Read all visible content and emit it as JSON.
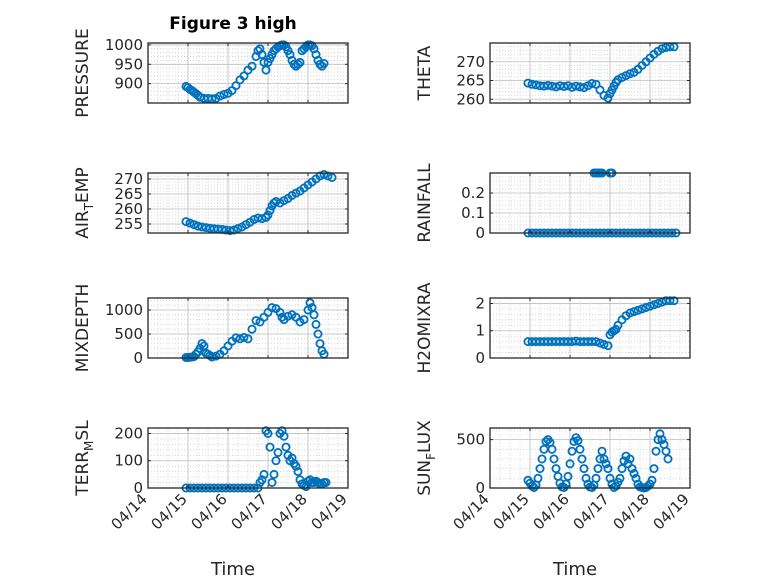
{
  "chart_data": [
    {
      "type": "scatter",
      "title": "Figure 3 high",
      "ylabel": "PRESSURE",
      "ylim": [
        850,
        1005
      ],
      "yticks": [
        900,
        950,
        1000
      ],
      "xlim": [
        0,
        5
      ],
      "xtick_labels": [],
      "grid": true,
      "marker": "circle",
      "color": "#0072BD",
      "x": [
        0.95,
        1.0,
        1.05,
        1.1,
        1.15,
        1.2,
        1.25,
        1.3,
        1.4,
        1.5,
        1.6,
        1.7,
        1.8,
        1.9,
        2.0,
        2.1,
        2.2,
        2.3,
        2.4,
        2.5,
        2.6,
        2.7,
        2.75,
        2.8,
        2.85,
        2.9,
        2.95,
        3.0,
        3.05,
        3.1,
        3.15,
        3.2,
        3.25,
        3.3,
        3.35,
        3.4,
        3.45,
        3.5,
        3.55,
        3.6,
        3.65,
        3.7,
        3.75,
        3.8,
        3.85,
        3.9,
        3.95,
        4.0,
        4.05,
        4.1,
        4.15,
        4.2,
        4.25,
        4.3,
        4.35,
        4.4
      ],
      "y": [
        893,
        890,
        885,
        882,
        878,
        874,
        870,
        865,
        862,
        862,
        861,
        862,
        868,
        872,
        875,
        882,
        895,
        910,
        920,
        935,
        945,
        970,
        985,
        990,
        975,
        955,
        935,
        955,
        965,
        975,
        985,
        990,
        995,
        998,
        1000,
        1000,
        995,
        985,
        975,
        960,
        950,
        945,
        950,
        955,
        985,
        990,
        995,
        1000,
        1000,
        998,
        990,
        975,
        960,
        950,
        945,
        952
      ],
      "series_name": ""
    },
    {
      "type": "scatter",
      "title": "",
      "ylabel": "THETA",
      "ylim": [
        259,
        275
      ],
      "yticks": [
        260,
        265,
        270
      ],
      "xlim": [
        0,
        5
      ],
      "xtick_labels": [],
      "grid": true,
      "x": [
        0.95,
        1.05,
        1.15,
        1.25,
        1.35,
        1.45,
        1.55,
        1.65,
        1.75,
        1.85,
        1.95,
        2.05,
        2.15,
        2.25,
        2.35,
        2.45,
        2.55,
        2.65,
        2.75,
        2.85,
        2.95,
        3.0,
        3.05,
        3.1,
        3.15,
        3.2,
        3.3,
        3.4,
        3.5,
        3.6,
        3.7,
        3.8,
        3.9,
        4.0,
        4.1,
        4.2,
        4.3,
        4.4,
        4.5,
        4.6
      ],
      "y": [
        264.3,
        264,
        263.8,
        263.6,
        263.5,
        263.7,
        263.5,
        263.3,
        263.6,
        263.4,
        263.6,
        263.2,
        263.5,
        263.3,
        263.1,
        263.6,
        264.2,
        264,
        262.5,
        261,
        260.3,
        261.5,
        262.5,
        263.5,
        264.5,
        265.2,
        265.8,
        266.3,
        266.8,
        267.2,
        268,
        269,
        270,
        271,
        272,
        272.8,
        273.5,
        273.8,
        274,
        274
      ]
    },
    {
      "type": "scatter",
      "title": "",
      "ylabel": "AIR_TEMP",
      "ylim": [
        252,
        272
      ],
      "yticks": [
        255,
        260,
        265,
        270
      ],
      "xlim": [
        0,
        5
      ],
      "xtick_labels": [],
      "grid": true,
      "x": [
        0.95,
        1.05,
        1.15,
        1.25,
        1.35,
        1.45,
        1.55,
        1.65,
        1.75,
        1.85,
        1.95,
        2.05,
        2.15,
        2.25,
        2.35,
        2.45,
        2.55,
        2.65,
        2.75,
        2.85,
        2.95,
        3.0,
        3.05,
        3.1,
        3.15,
        3.2,
        3.3,
        3.4,
        3.5,
        3.6,
        3.7,
        3.8,
        3.9,
        4.0,
        4.1,
        4.2,
        4.3,
        4.4,
        4.5,
        4.6
      ],
      "y": [
        255.8,
        255.3,
        254.8,
        254.3,
        254.0,
        253.8,
        253.6,
        253.4,
        253.3,
        253.2,
        253.0,
        252.8,
        253.0,
        253.5,
        254.0,
        254.8,
        255.6,
        256.5,
        257.0,
        256.8,
        257.2,
        258,
        259.5,
        261,
        262,
        262.5,
        262,
        262.8,
        263.5,
        264.5,
        265.3,
        266,
        267,
        268,
        269,
        270,
        271,
        271.5,
        271,
        270.5
      ]
    },
    {
      "type": "scatter",
      "title": "",
      "ylabel": "RAINFALL",
      "ylim": [
        0,
        0.3
      ],
      "yticks": [
        0,
        0.1,
        0.2
      ],
      "xlim": [
        0,
        5
      ],
      "xtick_labels": [],
      "grid": true,
      "x": [
        0.95,
        1.05,
        1.15,
        1.25,
        1.35,
        1.45,
        1.55,
        1.65,
        1.75,
        1.85,
        1.95,
        2.05,
        2.15,
        2.25,
        2.35,
        2.45,
        2.55,
        2.65,
        2.75,
        2.85,
        2.95,
        3.05,
        3.15,
        3.25,
        3.35,
        3.45,
        3.55,
        3.65,
        3.75,
        3.85,
        3.95,
        4.05,
        4.15,
        4.25,
        4.35,
        4.45,
        4.55,
        4.65,
        2.6,
        2.65,
        2.7,
        2.75,
        2.8,
        3.0,
        3.05
      ],
      "y": [
        0,
        0,
        0,
        0,
        0,
        0,
        0,
        0,
        0,
        0,
        0,
        0,
        0,
        0,
        0,
        0,
        0,
        0,
        0,
        0,
        0,
        0,
        0,
        0,
        0,
        0,
        0,
        0,
        0,
        0,
        0,
        0,
        0,
        0,
        0,
        0,
        0,
        0,
        0.3,
        0.3,
        0.3,
        0.3,
        0.3,
        0.3,
        0.3
      ]
    },
    {
      "type": "scatter",
      "title": "",
      "ylabel": "MIXDEPTH",
      "ylim": [
        0,
        1250
      ],
      "yticks": [
        0,
        500,
        1000
      ],
      "xlim": [
        0,
        5
      ],
      "xtick_labels": [],
      "grid": true,
      "x": [
        0.95,
        1.0,
        1.05,
        1.1,
        1.15,
        1.2,
        1.25,
        1.3,
        1.35,
        1.4,
        1.45,
        1.5,
        1.55,
        1.6,
        1.7,
        1.8,
        1.9,
        2.0,
        2.1,
        2.2,
        2.3,
        2.4,
        2.5,
        2.6,
        2.7,
        2.8,
        2.9,
        3.0,
        3.1,
        3.2,
        3.3,
        3.35,
        3.4,
        3.5,
        3.6,
        3.7,
        3.8,
        3.9,
        4.0,
        4.05,
        4.1,
        4.15,
        4.2,
        4.25,
        4.3,
        4.35,
        4.4
      ],
      "y": [
        10,
        10,
        15,
        20,
        30,
        80,
        130,
        200,
        300,
        250,
        100,
        80,
        50,
        20,
        40,
        80,
        150,
        250,
        350,
        420,
        400,
        430,
        400,
        600,
        780,
        750,
        850,
        950,
        1050,
        1030,
        950,
        850,
        800,
        870,
        900,
        850,
        750,
        800,
        1000,
        1150,
        1050,
        900,
        700,
        500,
        300,
        150,
        80
      ]
    },
    {
      "type": "scatter",
      "title": "",
      "ylabel": "H2OMIXRA",
      "ylim": [
        0,
        2.2
      ],
      "yticks": [
        0,
        1,
        2
      ],
      "xlim": [
        0,
        5
      ],
      "xtick_labels": [],
      "grid": true,
      "x": [
        0.95,
        1.05,
        1.15,
        1.25,
        1.35,
        1.45,
        1.55,
        1.65,
        1.75,
        1.85,
        1.95,
        2.05,
        2.15,
        2.25,
        2.35,
        2.45,
        2.55,
        2.65,
        2.75,
        2.85,
        2.95,
        3.0,
        3.05,
        3.1,
        3.15,
        3.2,
        3.3,
        3.4,
        3.5,
        3.6,
        3.7,
        3.8,
        3.9,
        4.0,
        4.1,
        4.2,
        4.3,
        4.4,
        4.5,
        4.6
      ],
      "y": [
        0.6,
        0.6,
        0.6,
        0.6,
        0.6,
        0.6,
        0.6,
        0.6,
        0.6,
        0.6,
        0.6,
        0.6,
        0.62,
        0.6,
        0.6,
        0.6,
        0.6,
        0.6,
        0.55,
        0.5,
        0.45,
        0.85,
        0.95,
        1.0,
        1.05,
        1.2,
        1.4,
        1.55,
        1.65,
        1.7,
        1.75,
        1.8,
        1.85,
        1.9,
        1.95,
        2.0,
        2.05,
        2.1,
        2.1,
        2.1
      ]
    },
    {
      "type": "scatter",
      "title": "",
      "ylabel": "TERR_MSL",
      "xlabel": "Time",
      "ylim": [
        0,
        220
      ],
      "yticks": [
        0,
        100,
        200
      ],
      "xlim": [
        0,
        5
      ],
      "xtick_labels": [
        "04/14",
        "04/15",
        "04/16",
        "04/17",
        "04/18",
        "04/19"
      ],
      "grid": true,
      "x": [
        0.95,
        1.05,
        1.15,
        1.25,
        1.35,
        1.45,
        1.55,
        1.65,
        1.75,
        1.85,
        1.95,
        2.05,
        2.15,
        2.25,
        2.35,
        2.45,
        2.55,
        2.65,
        2.75,
        2.8,
        2.85,
        2.9,
        2.95,
        3.0,
        3.05,
        3.1,
        3.15,
        3.2,
        3.25,
        3.3,
        3.35,
        3.4,
        3.45,
        3.5,
        3.55,
        3.6,
        3.65,
        3.7,
        3.75,
        3.8,
        3.85,
        3.9,
        3.95,
        4.0,
        4.05,
        4.1,
        4.15,
        4.2,
        4.25,
        4.3,
        4.35,
        4.4,
        4.45
      ],
      "y": [
        0,
        0,
        0,
        0,
        0,
        0,
        0,
        0,
        0,
        0,
        0,
        0,
        0,
        0,
        0,
        0,
        0,
        0,
        0,
        20,
        30,
        50,
        210,
        200,
        150,
        20,
        50,
        100,
        130,
        200,
        210,
        190,
        150,
        120,
        100,
        110,
        90,
        80,
        60,
        30,
        15,
        10,
        5,
        25,
        30,
        20,
        20,
        25,
        20,
        15,
        15,
        20,
        20
      ]
    },
    {
      "type": "scatter",
      "title": "",
      "ylabel": "SUN_FLUX",
      "xlabel": "Time",
      "ylim": [
        0,
        620
      ],
      "yticks": [
        0,
        500
      ],
      "xlim": [
        0,
        5
      ],
      "xtick_labels": [
        "04/14",
        "04/15",
        "04/16",
        "04/17",
        "04/18",
        "04/19"
      ],
      "grid": true,
      "x": [
        0.95,
        1.0,
        1.05,
        1.1,
        1.15,
        1.2,
        1.25,
        1.3,
        1.35,
        1.4,
        1.45,
        1.5,
        1.55,
        1.6,
        1.65,
        1.7,
        1.75,
        1.8,
        1.85,
        1.9,
        1.95,
        2.0,
        2.05,
        2.1,
        2.15,
        2.2,
        2.25,
        2.3,
        2.35,
        2.4,
        2.45,
        2.5,
        2.55,
        2.6,
        2.65,
        2.7,
        2.75,
        2.8,
        2.85,
        2.9,
        2.95,
        3.0,
        3.05,
        3.1,
        3.15,
        3.2,
        3.25,
        3.3,
        3.35,
        3.4,
        3.45,
        3.5,
        3.55,
        3.6,
        3.65,
        3.7,
        3.75,
        3.8,
        3.85,
        3.9,
        3.95,
        4.0,
        4.05,
        4.1,
        4.15,
        4.2,
        4.25,
        4.3,
        4.35,
        4.4,
        4.45
      ],
      "y": [
        80,
        50,
        20,
        5,
        30,
        100,
        200,
        300,
        400,
        480,
        500,
        470,
        400,
        300,
        200,
        120,
        50,
        10,
        5,
        40,
        120,
        250,
        380,
        480,
        520,
        490,
        400,
        300,
        200,
        100,
        40,
        10,
        5,
        30,
        100,
        200,
        300,
        380,
        300,
        250,
        200,
        100,
        40,
        5,
        20,
        60,
        100,
        200,
        280,
        330,
        250,
        300,
        200,
        150,
        100,
        40,
        10,
        5,
        0,
        5,
        20,
        40,
        80,
        200,
        380,
        500,
        560,
        500,
        450,
        380,
        300
      ]
    }
  ]
}
